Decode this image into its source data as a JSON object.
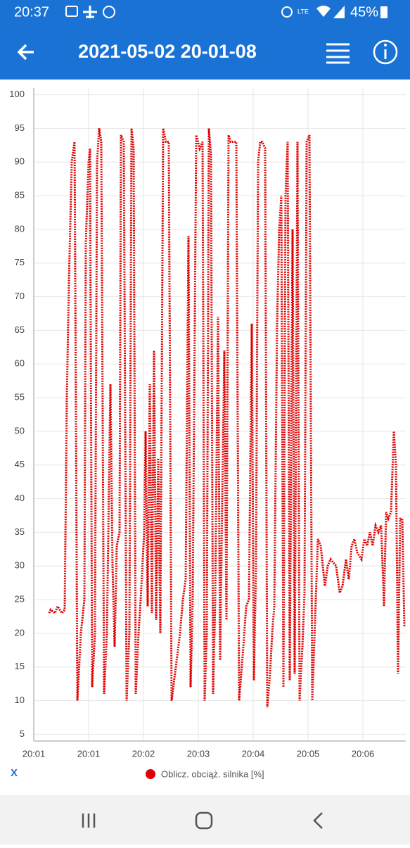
{
  "status_bar": {
    "time": "20:37",
    "battery": "45%"
  },
  "app_bar": {
    "title": "2021-05-02 20-01-08"
  },
  "reset_label": "X",
  "chart_data": {
    "type": "line",
    "x": [
      22,
      24,
      30,
      34,
      40,
      44,
      47,
      50,
      54,
      58,
      62,
      67,
      72,
      74,
      78,
      80,
      83,
      87,
      90,
      93,
      96,
      100,
      104,
      109,
      112,
      115,
      118,
      122,
      124,
      128,
      132,
      136,
      139,
      142,
      145,
      149,
      152,
      157,
      159,
      162,
      165,
      168,
      171,
      174,
      177,
      180,
      184,
      188,
      192,
      196,
      202,
      208,
      212,
      216,
      220,
      223,
      226,
      231,
      236,
      240,
      243,
      246,
      249,
      252,
      255,
      258,
      262,
      265,
      268,
      271,
      274,
      277,
      280,
      285,
      288,
      292,
      295,
      298,
      302,
      306,
      310,
      313,
      316,
      319,
      322,
      325,
      329,
      332,
      336,
      339,
      342,
      346,
      349,
      352,
      355,
      358,
      361,
      364,
      368,
      371,
      375,
      378,
      382,
      385,
      388,
      392,
      396,
      400,
      404,
      408,
      414,
      418,
      422,
      430,
      435,
      439,
      444,
      448,
      452,
      456,
      460,
      466,
      470,
      474,
      478,
      482,
      486,
      490,
      494,
      498,
      501,
      504,
      508,
      512,
      515,
      518,
      521,
      524,
      527
    ],
    "series": [
      {
        "name": "Oblicz. obciąż. silnika [%]",
        "color": "#e00000",
        "values": [
          23,
          23.5,
          23,
          24,
          23,
          23.5,
          55,
          72,
          90,
          93,
          10,
          20,
          25,
          78,
          90,
          92,
          12,
          20,
          90,
          95,
          93,
          11,
          20,
          57,
          30,
          18,
          33,
          35,
          94,
          93,
          10,
          20,
          95,
          92,
          11,
          20,
          25,
          35,
          50,
          24,
          57,
          23,
          62,
          22,
          46,
          20,
          95,
          93,
          93,
          10,
          15,
          20,
          25,
          28,
          79,
          12,
          25,
          94,
          92,
          93,
          10,
          20,
          95,
          91,
          11,
          25,
          67,
          16,
          40,
          62,
          22,
          94,
          93,
          93,
          93,
          10,
          14,
          18,
          24,
          25,
          66,
          13,
          30,
          90,
          93,
          93,
          92,
          9,
          14,
          20,
          24,
          66,
          80,
          85,
          12,
          85,
          93,
          13,
          80,
          14,
          93,
          10,
          18,
          26,
          93,
          94,
          10,
          22,
          34,
          33,
          27,
          30,
          31,
          30,
          26,
          27,
          31,
          28,
          33,
          34,
          32,
          31,
          34,
          33,
          35,
          33,
          36,
          35,
          36,
          24,
          38,
          37,
          38,
          50,
          45,
          14,
          37,
          37,
          21
        ]
      }
    ],
    "xlim": [
      0,
      529
    ],
    "xticks": [
      {
        "value": 0,
        "label": "20:01"
      },
      {
        "value": 78,
        "label": "20:01"
      },
      {
        "value": 156,
        "label": "20:02"
      },
      {
        "value": 234,
        "label": "20:03"
      },
      {
        "value": 312,
        "label": "20:04"
      },
      {
        "value": 390,
        "label": "20:05"
      },
      {
        "value": 468,
        "label": "20:06"
      }
    ],
    "ylim": [
      4,
      101
    ],
    "yticks": [
      5,
      10,
      15,
      20,
      25,
      30,
      35,
      40,
      45,
      50,
      55,
      60,
      65,
      70,
      75,
      80,
      85,
      90,
      95,
      100
    ],
    "grid": true
  }
}
